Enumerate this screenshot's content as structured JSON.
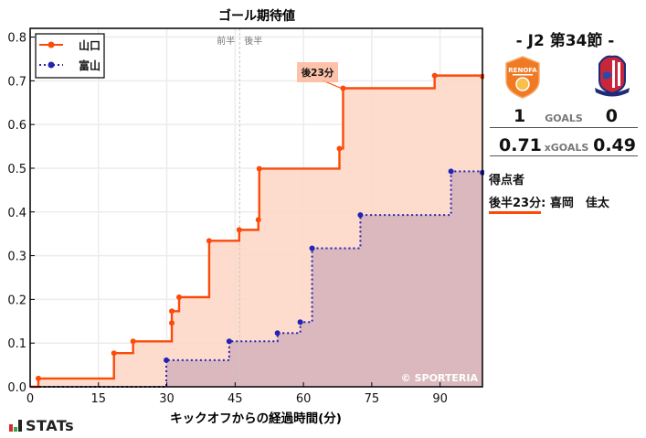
{
  "chart_data": {
    "type": "line",
    "subtype": "step-area",
    "title": "ゴール期待値",
    "xlabel": "キックオフからの経過時間(分)",
    "ylabel": "",
    "xlim": [
      0,
      99.3
    ],
    "ylim": [
      0,
      0.82
    ],
    "xticks": [
      0,
      15,
      30,
      45,
      60,
      75,
      90
    ],
    "yticks": [
      "0.0",
      "0.1",
      "0.2",
      "0.3",
      "0.4",
      "0.5",
      "0.6",
      "0.7",
      "0.8"
    ],
    "grid": true,
    "legend_position": "upper left",
    "halftime_marker": {
      "x": 46,
      "labels": [
        "前半",
        "後半"
      ]
    },
    "annotation": {
      "text": "後23分",
      "x": 68.7,
      "y": 0.683
    },
    "watermark": "© SPORTERIA",
    "series": [
      {
        "name": "山口",
        "color": "#fa4b0b",
        "fill": "#fdd8c8",
        "line_style": "solid",
        "x": [
          1.8,
          18.4,
          22.6,
          31.1,
          31.1,
          32.7,
          39.3,
          45.9,
          50.1,
          50.3,
          67.9,
          68.7,
          88.8
        ],
        "values": [
          0.019,
          0.077,
          0.104,
          0.146,
          0.173,
          0.205,
          0.334,
          0.359,
          0.382,
          0.499,
          0.545,
          0.683,
          0.712
        ],
        "final": 0.71
      },
      {
        "name": "富山",
        "color": "#2323b4",
        "fill": "#d6b4bd",
        "line_style": "dotted",
        "x": [
          29.9,
          43.7,
          54.3,
          59.3,
          61.9,
          72.5,
          92.4
        ],
        "values": [
          0.061,
          0.104,
          0.123,
          0.148,
          0.317,
          0.393,
          0.493
        ],
        "final": 0.49
      }
    ]
  },
  "match": {
    "round": "- J2 第34節 -",
    "home": {
      "name": "山口",
      "crest_text": "RENOFA",
      "goals": "1",
      "xg": "0.71",
      "crest_icon": "renofa-yamaguchi-crest"
    },
    "away": {
      "name": "富山",
      "goals": "0",
      "xg": "0.49",
      "crest_icon": "kataller-toyama-crest"
    },
    "goals_label": "GOALS",
    "xg_label": "xGOALS"
  },
  "scorers": {
    "title": "得点者",
    "items": [
      {
        "time": "後半23分",
        "name": ": 喜岡　佳太"
      }
    ]
  },
  "branding": {
    "logo_text": "STATs",
    "bar_colors": [
      "#d92b2b",
      "#2ea84a",
      "#222222"
    ]
  }
}
